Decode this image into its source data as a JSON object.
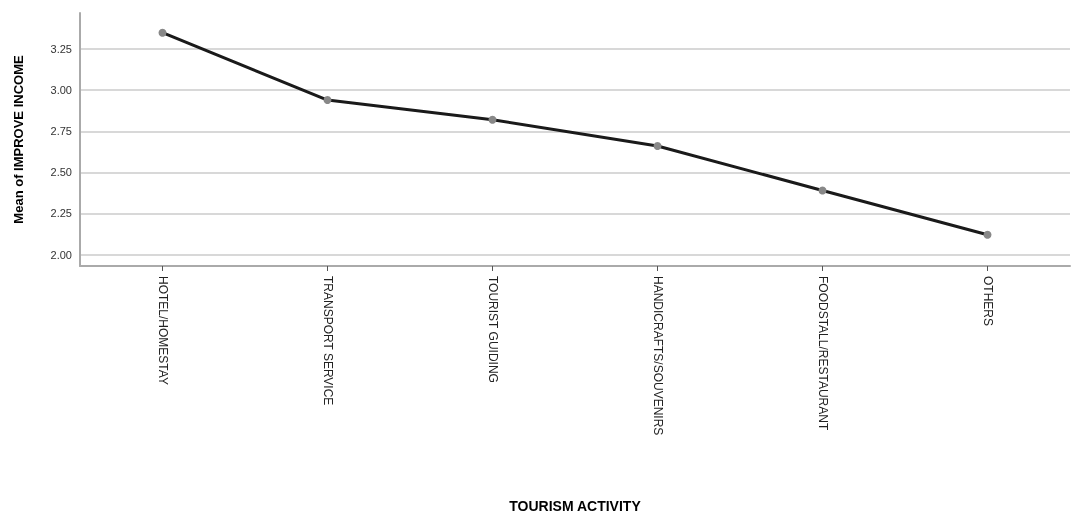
{
  "chart_data": {
    "type": "line",
    "xlabel": "TOURISM ACTIVITY",
    "ylabel": "Mean of IMPROVE INCOME",
    "categories": [
      "HOTEL/HOMESTAY",
      "TRANSPORT SERVICE",
      "TOURIST GUIDING",
      "HANDICRAFTS/SOUVENIRS",
      "FOODSTALL/RESTAURANT",
      "OTHERS"
    ],
    "series": [
      {
        "color": "#1a1a1a",
        "values": [
          3.35,
          2.94,
          2.82,
          2.66,
          2.39,
          2.12
        ]
      }
    ],
    "ylim": [
      1.93,
      3.47
    ],
    "yticks": [
      {
        "value": 2,
        "label": "2.00"
      },
      {
        "value": 2.25,
        "label": "2.25"
      },
      {
        "value": 2.5,
        "label": "2.50"
      },
      {
        "value": 2.75,
        "label": "2.75"
      },
      {
        "value": 3,
        "label": "3.00"
      },
      {
        "value": 3.25,
        "label": "3.25"
      }
    ],
    "grid": "y",
    "marker": "circle",
    "line_style": "solid"
  }
}
